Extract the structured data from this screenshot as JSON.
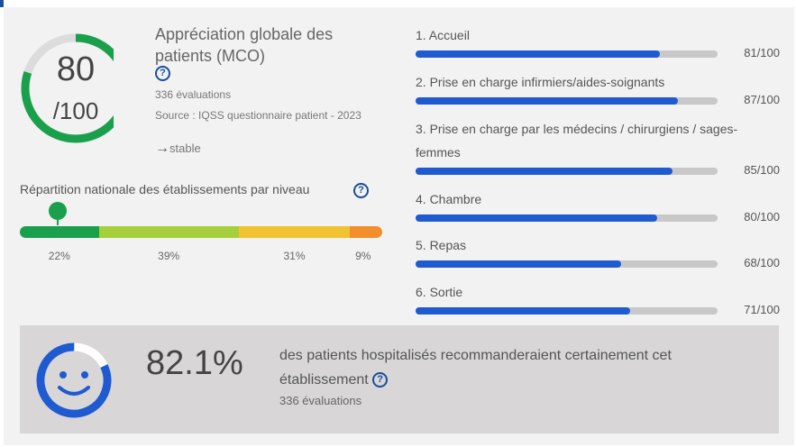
{
  "score": {
    "value": 80,
    "value_text": "80",
    "denominator": "/100",
    "title": "Appréciation globale des patients (MCO)",
    "evaluations": "336 évaluations",
    "source": "Source : IQSS questionnaire patient - 2023",
    "trend": "stable",
    "help_glyph": "?"
  },
  "distribution": {
    "title": "Répartition nationale des établissements par niveau",
    "segments": [
      {
        "label": "22%",
        "value": 22,
        "color": "#1aa04c"
      },
      {
        "label": "39%",
        "value": 39,
        "color": "#a5cf3c"
      },
      {
        "label": "31%",
        "value": 31,
        "color": "#f1c232"
      },
      {
        "label": "9%",
        "value": 9,
        "color": "#f28f2c"
      }
    ]
  },
  "criteria": [
    {
      "label": "1. Accueil",
      "score": "81/100",
      "value": 81
    },
    {
      "label": "2. Prise en charge infirmiers/aides-soignants",
      "score": "87/100",
      "value": 87
    },
    {
      "label": "3. Prise en charge par les médecins / chirurgiens / sages-femmes",
      "score": "85/100",
      "value": 85
    },
    {
      "label": "4. Chambre",
      "score": "80/100",
      "value": 80
    },
    {
      "label": "5. Repas",
      "score": "68/100",
      "value": 68
    },
    {
      "label": "6. Sortie",
      "score": "71/100",
      "value": 71
    }
  ],
  "recommendation": {
    "percent": "82.1%",
    "value": 82.1,
    "text": "des patients hospitalisés recommanderaient certainement cet établissement",
    "evaluations": "336 évaluations"
  },
  "colors": {
    "gauge_fill": "#1aa04c",
    "gauge_track": "#dcdcdc",
    "bar_fill": "#1f5ad0",
    "bar_track": "#c8c8c8",
    "accent": "#1b4e9b"
  },
  "icons": {
    "help": "help-circle-icon",
    "trend": "arrow-right-icon",
    "smile": "smiley-face-icon"
  }
}
